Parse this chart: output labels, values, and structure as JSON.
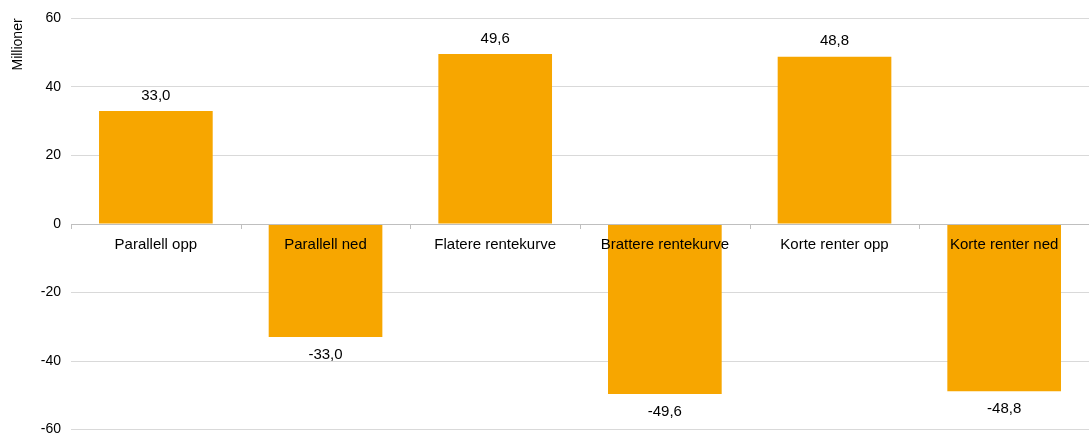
{
  "chart_data": {
    "type": "bar",
    "ylabel": "Millioner",
    "categories": [
      "Parallell opp",
      "Parallell ned",
      "Flatere rentekurve",
      "Brattere rentekurve",
      "Korte renter opp",
      "Korte renter ned"
    ],
    "values": [
      33.0,
      -33.0,
      49.6,
      -49.6,
      48.8,
      -48.8
    ],
    "value_labels": [
      "33,0",
      "-33,0",
      "49,6",
      "-49,6",
      "48,8",
      "-48,8"
    ],
    "color": "#f7a600",
    "ylim": [
      -60,
      60
    ],
    "yticks": [
      -60,
      -40,
      -20,
      0,
      20,
      40,
      60
    ],
    "grid": "y",
    "legend": false
  }
}
